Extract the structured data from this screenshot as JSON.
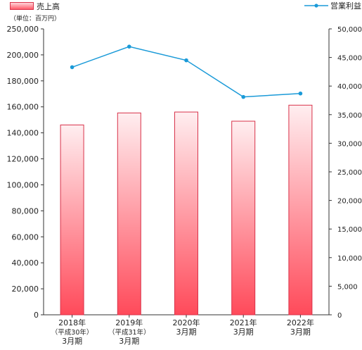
{
  "chart_data": {
    "type": "bar",
    "unit_label": "（単位：百万円）",
    "categories": [
      [
        "2018年",
        "（平成30年）",
        "3月期"
      ],
      [
        "2019年",
        "（平成31年）",
        "3月期"
      ],
      [
        "2020年",
        "3月期"
      ],
      [
        "2021年",
        "3月期"
      ],
      [
        "2022年",
        "3月期"
      ]
    ],
    "series": [
      {
        "name": "売上高",
        "kind": "bar",
        "axis": "left",
        "values": [
          166000,
          176500,
          177300,
          169300,
          183300
        ],
        "color_top": "#ffeef0",
        "color_bottom": "#ff4a5a",
        "stroke": "#d8324a"
      },
      {
        "name": "営業利益",
        "kind": "line",
        "axis": "right",
        "values": [
          43300,
          46900,
          44500,
          38100,
          38700
        ],
        "color": "#1a9ad8"
      }
    ],
    "y_left": {
      "min": 0,
      "max": 250000,
      "step": 20000,
      "ticks": [
        "0",
        "20,000",
        "40,000",
        "60,000",
        "80,000",
        "100,000",
        "120,000",
        "140,000",
        "160,000",
        "180,000",
        "200,000",
        "250,000"
      ],
      "tick_values": [
        0,
        20000,
        40000,
        60000,
        80000,
        100000,
        120000,
        140000,
        160000,
        180000,
        200000,
        250000
      ]
    },
    "y_right": {
      "min": 0,
      "max": 50000,
      "ticks": [
        "0",
        "5,000",
        "10,000",
        "15,000",
        "20,000",
        "25,000",
        "30,000",
        "35,000",
        "40,000",
        "45,000",
        "50,000"
      ],
      "tick_values": [
        0,
        5000,
        10000,
        15000,
        20000,
        25000,
        30000,
        35000,
        40000,
        45000,
        50000
      ]
    },
    "grid": false,
    "legend": "top"
  }
}
